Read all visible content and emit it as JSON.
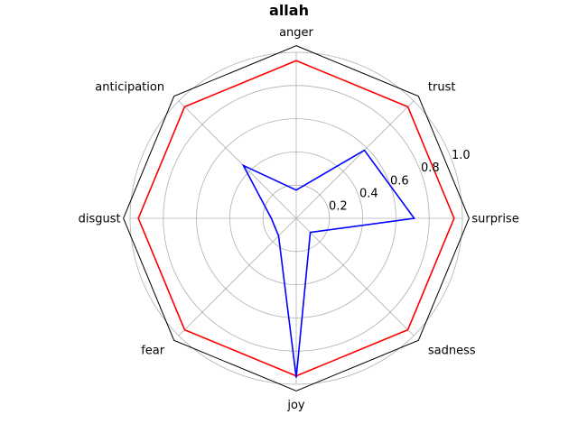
{
  "chart_data": {
    "type": "radar",
    "title": "allah",
    "categories": [
      "anger",
      "trust",
      "surprise",
      "sadness",
      "joy",
      "fear",
      "disgust",
      "anticipation"
    ],
    "rlim": [
      0,
      1.0
    ],
    "rticks": [
      0.2,
      0.4,
      0.6,
      0.8,
      1.0
    ],
    "rtick_labels": [
      "0.2",
      "0.4",
      "0.6",
      "0.8",
      "1.0"
    ],
    "grid": true,
    "series": [
      {
        "color": "#ff0000",
        "values": [
          0.95,
          0.95,
          0.95,
          0.95,
          0.95,
          0.95,
          0.95,
          0.95
        ]
      },
      {
        "color": "#0000ff",
        "values": [
          0.17,
          0.58,
          0.71,
          0.12,
          0.96,
          0.15,
          0.15,
          0.45
        ]
      }
    ]
  }
}
